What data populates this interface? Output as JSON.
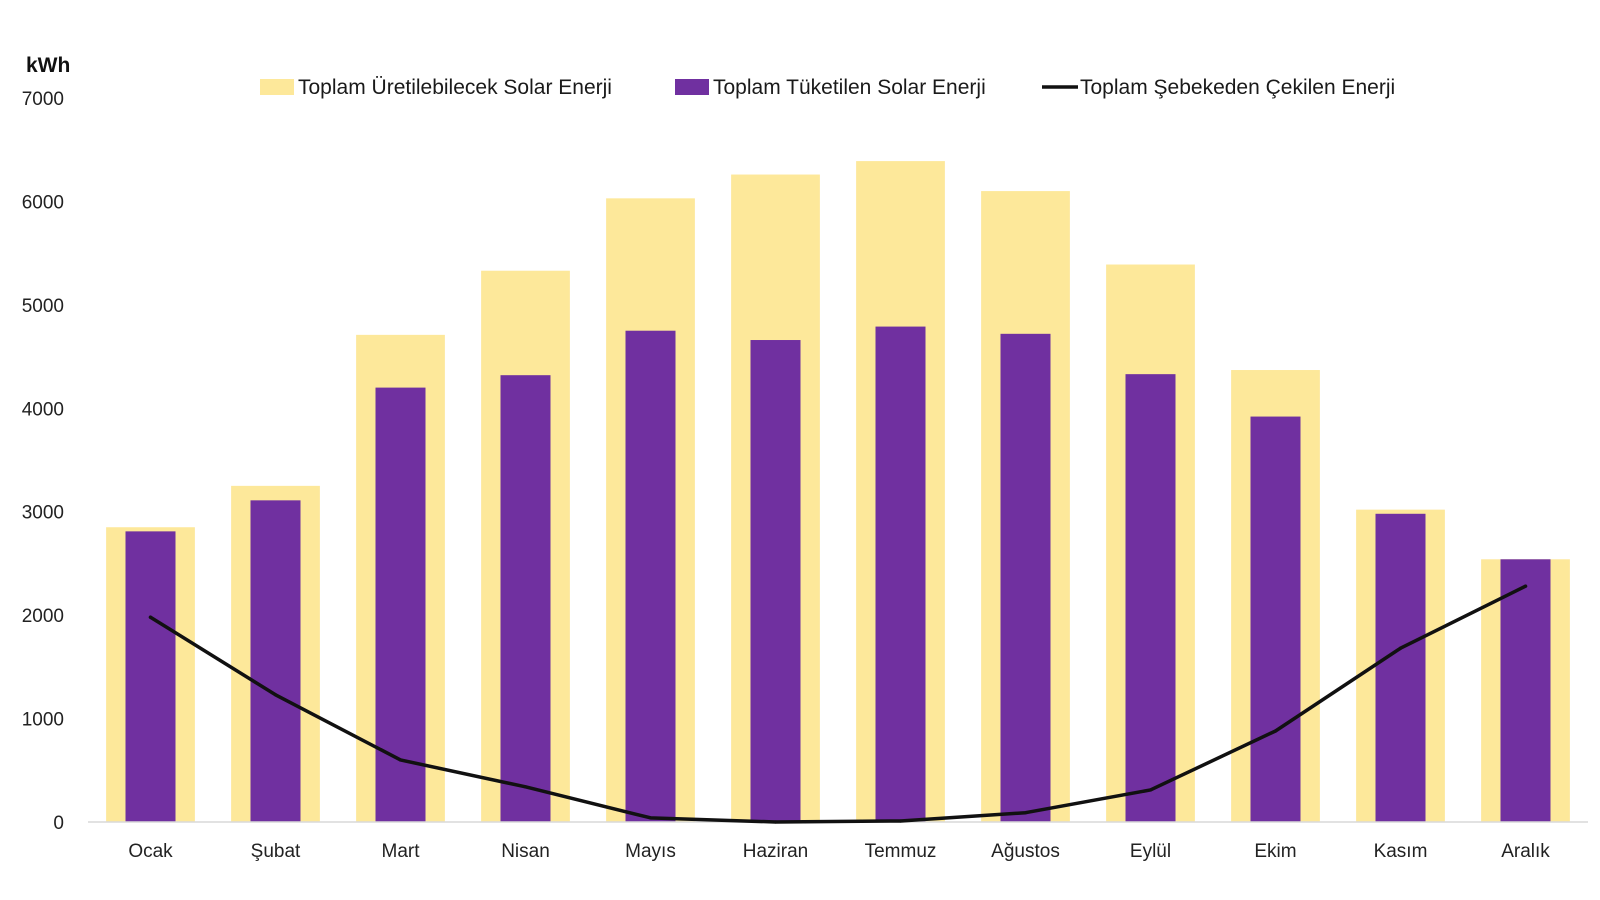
{
  "chart_data": {
    "type": "bar",
    "ylabel": "kWh",
    "ylim": [
      0,
      7000
    ],
    "yticks": [
      0,
      1000,
      2000,
      3000,
      4000,
      5000,
      6000,
      7000
    ],
    "grid": false,
    "legend_position": "top",
    "categories": [
      "Ocak",
      "Şubat",
      "Mart",
      "Nisan",
      "Mayıs",
      "Haziran",
      "Temmuz",
      "Ağustos",
      "Eylül",
      "Ekim",
      "Kasım",
      "Aralık"
    ],
    "series": [
      {
        "name": "Toplam Üretilebilecek Solar Enerji",
        "kind": "bar",
        "color": "#fde89a",
        "values": [
          2850,
          3250,
          4710,
          5330,
          6030,
          6260,
          6390,
          6100,
          5390,
          4370,
          3020,
          2540
        ]
      },
      {
        "name": "Toplam Tüketilen Solar Enerji",
        "kind": "bar",
        "color": "#7030a0",
        "values": [
          2810,
          3110,
          4200,
          4320,
          4750,
          4660,
          4790,
          4720,
          4330,
          3920,
          2980,
          2540
        ]
      },
      {
        "name": "Toplam Şebekeden Çekilen Enerji",
        "kind": "line",
        "color": "#111111",
        "values": [
          1980,
          1230,
          600,
          340,
          40,
          0,
          10,
          90,
          310,
          880,
          1680,
          2280
        ]
      }
    ]
  }
}
